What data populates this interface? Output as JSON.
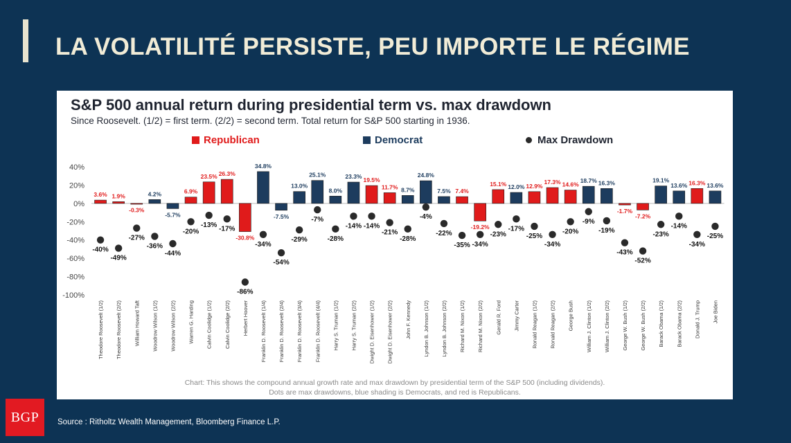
{
  "slide": {
    "title": "LA VOLATILITÉ PERSISTE, PEU IMPORTE LE RÉGIME",
    "source": "Source : Ritholtz Wealth Management, Bloomberg Finance L.P.",
    "logo_text": "BGP"
  },
  "colors": {
    "republican": "#e01b1b",
    "democrat": "#1d3c5e",
    "drawdown_dot": "#2a2a2a",
    "background": "#0d3354"
  },
  "legend": {
    "republican": "Republican",
    "democrat": "Democrat",
    "max_drawdown": "Max Drawdown"
  },
  "chart_data": {
    "type": "bar",
    "title": "S&P 500 annual return during presidential term vs. max drawdown",
    "subtitle": "Since Roosevelt. (1/2) = first term. (2/2) = second term. Total return for S&P 500 starting in 1936.",
    "ylim": [
      -100,
      40
    ],
    "yticks": [
      40,
      20,
      0,
      -20,
      -40,
      -60,
      -80,
      -100
    ],
    "ytick_labels": [
      "40%",
      "20%",
      "0%",
      "-20%",
      "-40%",
      "-60%",
      "-80%",
      "-100%"
    ],
    "categories": [
      "Theodore Roosevelt (1/2)",
      "Theodore Roosevelt (2/2)",
      "William Howard Taft",
      "Woodrow Wilson (1/2)",
      "Woodrow Wilson (2/2)",
      "Warren G. Harding",
      "Calvin Coolidge (1/2)",
      "Calvin Coolidge (2/2)",
      "Herbert Hoover",
      "Franklin D. Roosevelt (1/4)",
      "Franklin D. Roosevelt (2/4)",
      "Franklin D. Roosevelt (3/4)",
      "Franklin D. Roosevelt (4/4)",
      "Harry S. Truman (1/2)",
      "Harry S. Truman (2/2)",
      "Dwight D. Eisenhower (1/2)",
      "Dwight D. Eisenhower (2/2)",
      "John F. Kennedy",
      "Lyndon B. Johnson (1/2)",
      "Lyndon B. Johnson (2/2)",
      "Richard M. Nixon (1/2)",
      "Richard M. Nixon (2/2)",
      "Gerald R. Ford",
      "Jimmy Carter",
      "Ronald Reagan (1/2)",
      "Ronald Reagan (2/2)",
      "George Bush",
      "William J. Clinton (1/2)",
      "William J. Clinton (2/2)",
      "George W. Bush (1/2)",
      "George W. Bush (2/2)",
      "Barack Obama (1/2)",
      "Barack Obama (2/2)",
      "Donald J. Trump",
      "Joe Biden"
    ],
    "party": [
      "R",
      "R",
      "R",
      "D",
      "D",
      "R",
      "R",
      "R",
      "R",
      "D",
      "D",
      "D",
      "D",
      "D",
      "D",
      "R",
      "R",
      "D",
      "D",
      "D",
      "R",
      "R",
      "R",
      "D",
      "R",
      "R",
      "R",
      "D",
      "D",
      "R",
      "R",
      "D",
      "D",
      "R",
      "D"
    ],
    "series": [
      {
        "name": "Annual return",
        "values": [
          3.6,
          1.9,
          -0.3,
          4.2,
          -5.7,
          6.9,
          23.5,
          26.3,
          -30.8,
          34.8,
          -7.5,
          13.0,
          25.1,
          8.0,
          23.3,
          19.5,
          11.7,
          8.7,
          24.8,
          7.5,
          7.4,
          -19.2,
          15.1,
          12.0,
          12.9,
          17.3,
          14.6,
          18.7,
          16.3,
          -1.7,
          -7.2,
          19.1,
          13.6,
          16.3,
          13.6
        ],
        "labels": [
          "3.6%",
          "1.9%",
          "-0.3%",
          "4.2%",
          "-5.7%",
          "6.9%",
          "23.5%",
          "26.3%",
          "-30.8%",
          "34.8%",
          "-7.5%",
          "13.0%",
          "25.1%",
          "8.0%",
          "23.3%",
          "19.5%",
          "11.7%",
          "8.7%",
          "24.8%",
          "7.5%",
          "7.4%",
          "-19.2%",
          "15.1%",
          "12.0%",
          "12.9%",
          "17.3%",
          "14.6%",
          "18.7%",
          "16.3%",
          "-1.7%",
          "-7.2%",
          "19.1%",
          "13.6%",
          "16.3%",
          "13.6%"
        ]
      },
      {
        "name": "Max drawdown",
        "values": [
          -40,
          -49,
          -27,
          -36,
          -44,
          -20,
          -13,
          -17,
          -86,
          -34,
          -54,
          -29,
          -7,
          -28,
          -14,
          -14,
          -21,
          -28,
          -4,
          -22,
          -35,
          -34,
          -23,
          -17,
          -25,
          -34,
          -20,
          -9,
          -19,
          -43,
          -52,
          -23,
          -14,
          -34,
          -25
        ],
        "labels": [
          "-40%",
          "-49%",
          "-27%",
          "-36%",
          "-44%",
          "-20%",
          "-13%",
          "-17%",
          "-86%",
          "-34%",
          "-54%",
          "-29%",
          "-7%",
          "-28%",
          "-14%",
          "-14%",
          "-21%",
          "-28%",
          "-4%",
          "-22%",
          "-35%",
          "-34%",
          "-23%",
          "-17%",
          "-25%",
          "-34%",
          "-20%",
          "-9%",
          "-19%",
          "-43%",
          "-52%",
          "-23%",
          "-14%",
          "-34%",
          "-25%"
        ]
      }
    ]
  },
  "caption": {
    "line1": "Chart: This shows the compound annual growth rate and max drawdown by presidential term of the S&P 500 (including dividends).",
    "line2": "Dots are max drawdowns, blue shading is Democrats, and red is Republicans."
  }
}
